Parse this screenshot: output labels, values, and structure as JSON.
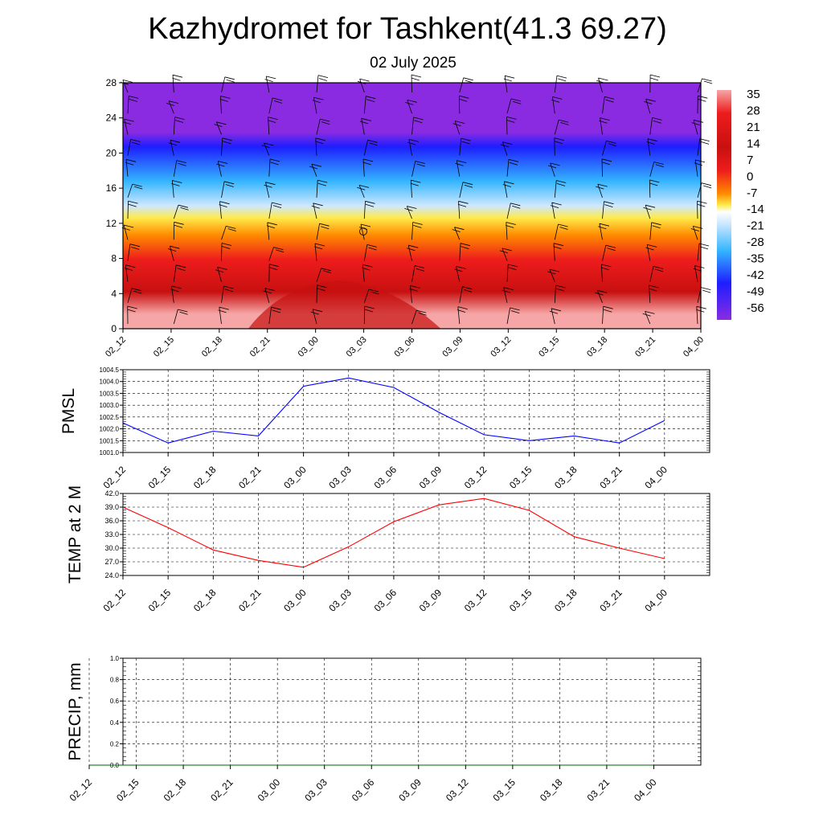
{
  "title": "Kazhydromet for Tashkent(41.3 69.27)",
  "subtitle": "02 July 2025",
  "time_labels": [
    "02_12",
    "02_15",
    "02_18",
    "02_21",
    "03_00",
    "03_03",
    "03_06",
    "03_09",
    "03_12",
    "03_15",
    "03_18",
    "03_21",
    "04_00"
  ],
  "chart_data": [
    {
      "type": "heatmap",
      "name": "temperature-wind-cross-section",
      "title": "",
      "x": [
        "02_12",
        "02_15",
        "02_18",
        "02_21",
        "03_00",
        "03_03",
        "03_06",
        "03_09",
        "03_12",
        "03_15",
        "03_18",
        "03_21",
        "04_00"
      ],
      "y_ticks": [
        0,
        4,
        8,
        12,
        16,
        20,
        24,
        28
      ],
      "ylim": [
        0,
        28
      ],
      "colorbar": {
        "labels": [
          "35",
          "28",
          "21",
          "14",
          "7",
          "0",
          "-7",
          "-14",
          "-21",
          "-28",
          "-35",
          "-42",
          "-49",
          "-56"
        ],
        "range": [
          -60,
          38
        ],
        "colors": {
          "violet": "#8a2be2",
          "blue": "#1e1eff",
          "skyblue": "#33b5ff",
          "paleblue": "#cfe8ff",
          "yellow": "#ffea4a",
          "orange": "#ff8a00",
          "red": "#ee1c1c",
          "darkred": "#c81010",
          "pink": "#f6a6a6"
        }
      },
      "wind_barbs": true
    },
    {
      "type": "line",
      "name": "pmsl",
      "ylabel": "PMSL",
      "x": [
        "02_12",
        "02_15",
        "02_18",
        "02_21",
        "03_00",
        "03_03",
        "03_06",
        "03_09",
        "03_12",
        "03_15",
        "03_18",
        "03_21",
        "04_00"
      ],
      "y_ticks": [
        "1001.0",
        "1001.5",
        "1002.0",
        "1002.5",
        "1003.0",
        "1003.5",
        "1004.0",
        "1004.5"
      ],
      "ylim": [
        1001.0,
        1004.5
      ],
      "series": [
        {
          "values": [
            1002.25,
            1001.4,
            1001.9,
            1001.7,
            1003.8,
            1004.15,
            1003.75,
            1002.7,
            1001.75,
            1001.5,
            1001.7,
            1001.4,
            1002.35
          ],
          "color": "#0000ff"
        }
      ],
      "grid": true
    },
    {
      "type": "line",
      "name": "temperature-2m",
      "ylabel": "TEMP at 2 M",
      "x": [
        "02_12",
        "02_15",
        "02_18",
        "02_21",
        "03_00",
        "03_03",
        "03_06",
        "03_09",
        "03_12",
        "03_15",
        "03_18",
        "03_21",
        "04_00"
      ],
      "y_ticks": [
        "24.0",
        "27.0",
        "30.0",
        "33.0",
        "36.0",
        "39.0",
        "42.0"
      ],
      "ylim": [
        24.0,
        42.0
      ],
      "series": [
        {
          "values": [
            39.0,
            34.5,
            29.6,
            27.3,
            25.8,
            30.3,
            35.8,
            39.5,
            40.9,
            38.3,
            32.5,
            30.0,
            27.7
          ],
          "color": "#ff0000"
        }
      ],
      "grid": true
    },
    {
      "type": "line",
      "name": "precipitation",
      "ylabel": "PRECIP, mm",
      "x": [
        "02_12",
        "02_15",
        "02_18",
        "02_21",
        "03_00",
        "03_03",
        "03_06",
        "03_09",
        "03_12",
        "03_15",
        "03_18",
        "03_21",
        "04_00"
      ],
      "y_ticks": [
        "0.0",
        "0.2",
        "0.4",
        "0.6",
        "0.8",
        "1.0"
      ],
      "ylim": [
        0.0,
        1.0
      ],
      "series": [
        {
          "values": [
            0,
            0,
            0,
            0,
            0,
            0,
            0,
            0,
            0,
            0,
            0,
            0,
            0
          ],
          "color": "#006400"
        }
      ],
      "grid": true
    }
  ]
}
